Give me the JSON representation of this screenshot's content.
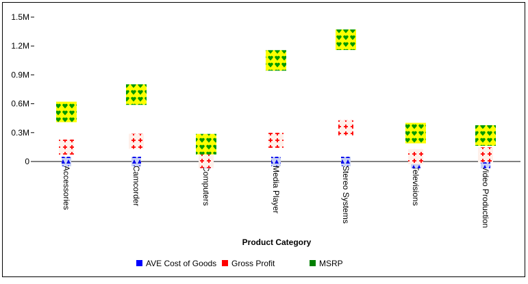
{
  "chart_data": {
    "type": "scatter",
    "title": "",
    "xlabel": "Product Category",
    "ylabel": "",
    "categories": [
      "Accessories",
      "Camcorder",
      "Computers",
      "Media Player",
      "Stereo Systems",
      "Televisions",
      "Video Production"
    ],
    "ylim": [
      0,
      1500000
    ],
    "yticks": [
      {
        "value": 0,
        "label": "0"
      },
      {
        "value": 300000,
        "label": "0.3M"
      },
      {
        "value": 600000,
        "label": "0.6M"
      },
      {
        "value": 900000,
        "label": "0.9M"
      },
      {
        "value": 1200000,
        "label": "1.2M"
      },
      {
        "value": 1500000,
        "label": "1.5M"
      }
    ],
    "series": [
      {
        "name": "AVE Cost of Goods",
        "color": "#0000ff",
        "marker": "blue-triangle-pattern-square",
        "values": [
          0,
          0,
          -20000,
          0,
          0,
          -20000,
          -20000
        ]
      },
      {
        "name": "Gross Profit",
        "color": "#ff0000",
        "marker": "red-cross-pattern-square",
        "values": [
          150000,
          210000,
          10000,
          220000,
          350000,
          50000,
          70000
        ]
      },
      {
        "name": "MSRP",
        "color": "#008000",
        "marker": "yellow-green-heart-pattern-square",
        "values": [
          515000,
          695000,
          180000,
          1050000,
          1265000,
          295000,
          270000
        ]
      }
    ],
    "grid": false,
    "legend_position": "bottom"
  }
}
